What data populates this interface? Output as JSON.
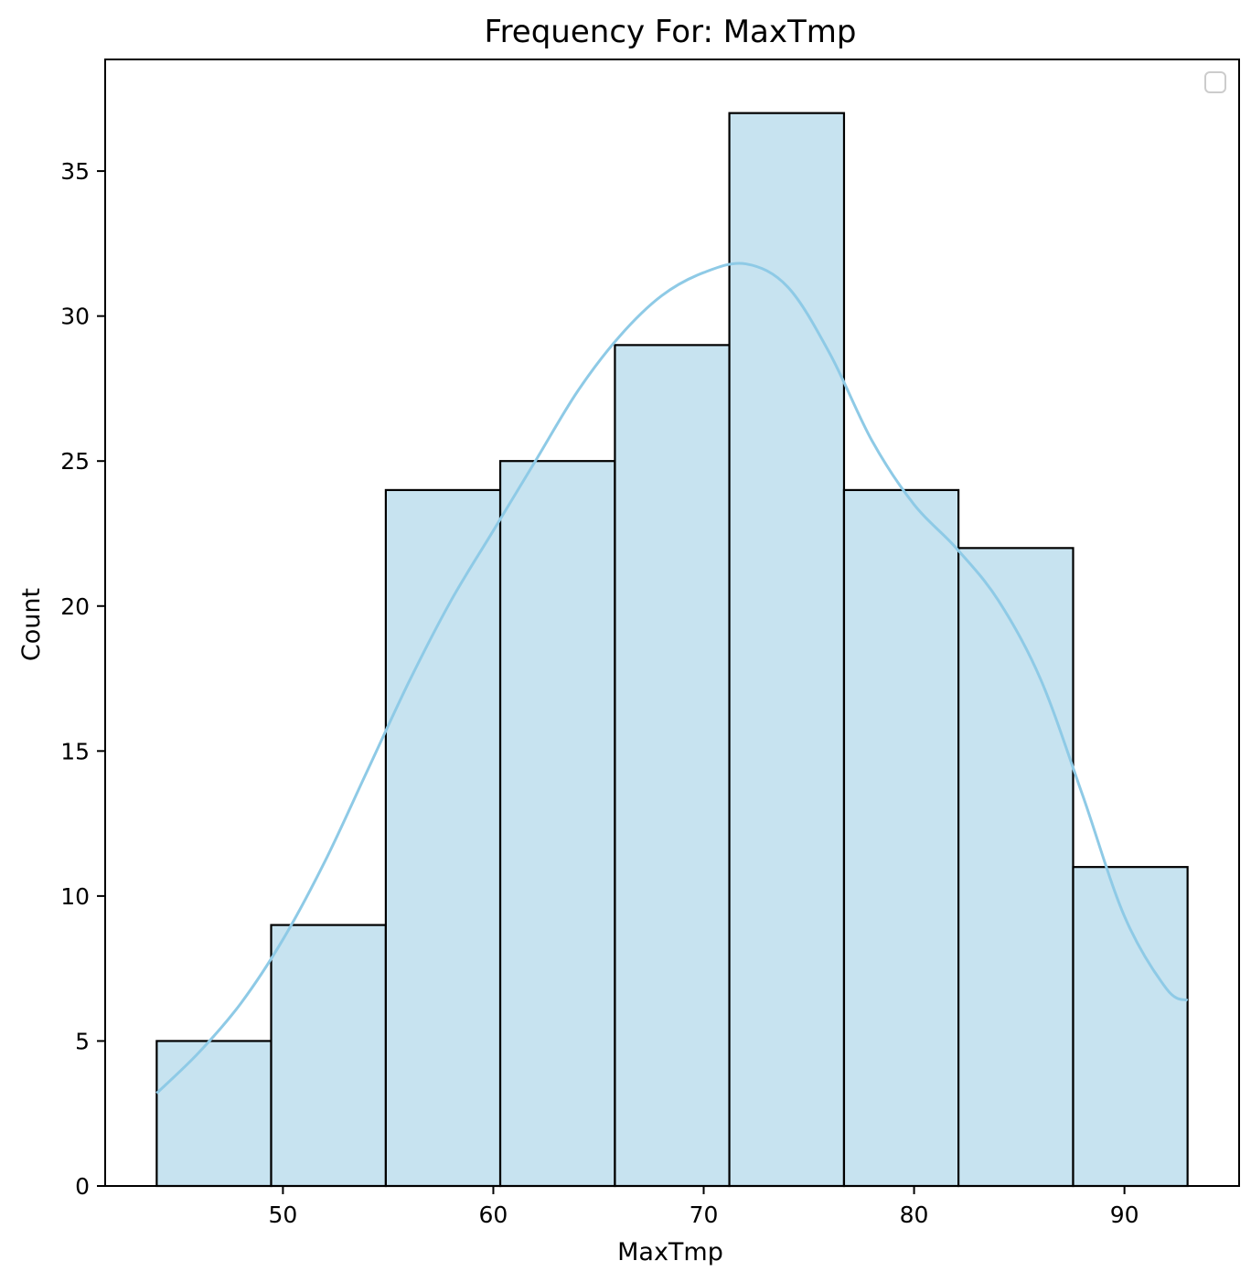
{
  "chart_data": {
    "type": "bar",
    "title": "Frequency For: MaxTmp",
    "xlabel": "MaxTmp",
    "ylabel": "Count",
    "bin_edges": [
      44.0,
      49.44,
      54.89,
      60.33,
      65.78,
      71.22,
      76.67,
      82.11,
      87.56,
      93.0
    ],
    "values": [
      5,
      9,
      24,
      25,
      29,
      37,
      24,
      22,
      11
    ],
    "xlim": [
      41.55,
      95.45
    ],
    "ylim": [
      0,
      38.85
    ],
    "x_ticks": [
      50,
      60,
      70,
      80,
      90
    ],
    "y_ticks": [
      0,
      5,
      10,
      15,
      20,
      25,
      30,
      35
    ],
    "kde": {
      "x": [
        44,
        46,
        48,
        50,
        52,
        54,
        56,
        58,
        60,
        62,
        64,
        66,
        68,
        70,
        72,
        74,
        76,
        78,
        80,
        82,
        84,
        86,
        88,
        90,
        92,
        93
      ],
      "y": [
        3.2,
        4.6,
        6.3,
        8.5,
        11.2,
        14.3,
        17.4,
        20.2,
        22.6,
        25.0,
        27.4,
        29.3,
        30.7,
        31.5,
        31.8,
        31.0,
        28.7,
        25.7,
        23.5,
        22.0,
        20.2,
        17.5,
        13.5,
        9.3,
        6.8,
        6.4
      ]
    },
    "legend": "top-right",
    "legend_entries": [],
    "grid": false,
    "colors": {
      "bar_fill": "#c7e3f0",
      "bar_edge": "#000000",
      "kde_line": "#8ecae6"
    }
  }
}
